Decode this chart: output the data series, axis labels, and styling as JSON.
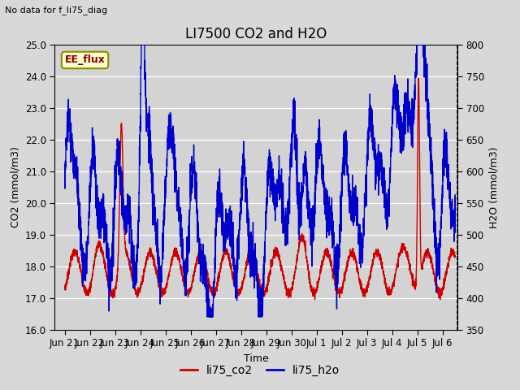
{
  "title": "LI7500 CO2 and H2O",
  "top_left_text": "No data for f_li75_diag",
  "box_label": "EE_flux",
  "xlabel": "Time",
  "ylabel_left": "CO2 (mmol/m3)",
  "ylabel_right": "H2O (mmol/m3)",
  "ylim_left": [
    16.0,
    25.0
  ],
  "ylim_right": [
    350,
    800
  ],
  "yticks_left": [
    16.0,
    17.0,
    18.0,
    19.0,
    20.0,
    21.0,
    22.0,
    23.0,
    24.0,
    25.0
  ],
  "yticks_right": [
    350,
    400,
    450,
    500,
    550,
    600,
    650,
    700,
    750,
    800
  ],
  "xtick_labels": [
    "Jun 21",
    "Jun 22",
    "Jun 23",
    "Jun 24",
    "Jun 25",
    "Jun 26",
    "Jun 27",
    "Jun 28",
    "Jun 29",
    "Jun 30",
    "Jul 1",
    "Jul 2",
    "Jul 3",
    "Jul 4",
    "Jul 5",
    "Jul 6"
  ],
  "xtick_positions": [
    0,
    1,
    2,
    3,
    4,
    5,
    6,
    7,
    8,
    9,
    10,
    11,
    12,
    13,
    14,
    15
  ],
  "co2_color": "#cc0000",
  "h2o_color": "#0000cc",
  "legend_labels": [
    "li75_co2",
    "li75_h2o"
  ],
  "fig_facecolor": "#d8d8d8",
  "plot_bg_color": "#d3d3d3",
  "grid_color": "#ffffff",
  "co2_lw": 1.0,
  "h2o_lw": 1.0,
  "title_fontsize": 12,
  "label_fontsize": 9,
  "tick_fontsize": 8.5,
  "x_min": -0.4,
  "x_max": 15.6
}
